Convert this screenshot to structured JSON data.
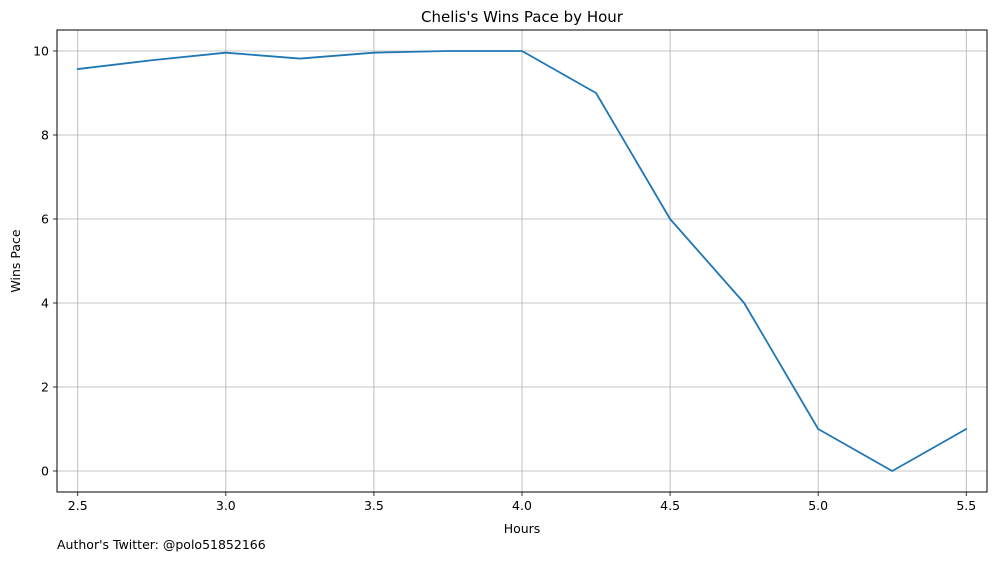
{
  "chart_data": {
    "type": "line",
    "title": "Chelis's Wins Pace by Hour",
    "xlabel": "Hours",
    "ylabel": "Wins Pace",
    "xlim": [
      2.43,
      5.57
    ],
    "ylim": [
      -0.5,
      10.5
    ],
    "xticks": [
      2.5,
      3.0,
      3.5,
      4.0,
      4.5,
      5.0,
      5.5
    ],
    "xtick_labels": [
      "2.5",
      "3.0",
      "3.5",
      "4.0",
      "4.5",
      "5.0",
      "5.5"
    ],
    "yticks": [
      0,
      2,
      4,
      6,
      8,
      10
    ],
    "ytick_labels": [
      "0",
      "2",
      "4",
      "6",
      "8",
      "10"
    ],
    "grid": true,
    "legend": "none",
    "series": [
      {
        "color": "#1f77b4",
        "x": [
          2.5,
          2.75,
          3.0,
          3.25,
          3.5,
          3.75,
          4.0,
          4.25,
          4.5,
          4.75,
          5.0,
          5.25,
          5.5
        ],
        "y": [
          9.57,
          9.78,
          9.96,
          9.82,
          9.96,
          10.0,
          10.0,
          9.0,
          6.0,
          4.0,
          1.0,
          0.0,
          1.0
        ]
      }
    ]
  },
  "footnote": "Author's Twitter: @polo51852166"
}
